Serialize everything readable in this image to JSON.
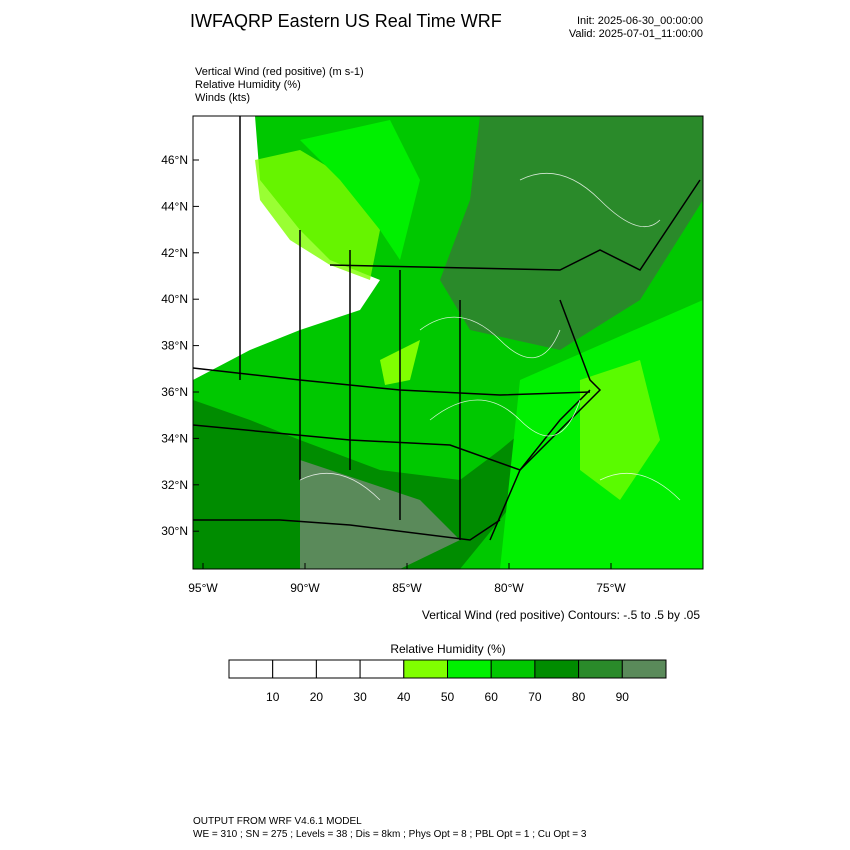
{
  "title": "IWFAQRP Eastern US Real Time WRF",
  "init": "Init: 2025-06-30_00:00:00",
  "valid": "Valid: 2025-07-01_11:00:00",
  "fields": [
    "Vertical Wind (red positive)   (m s-1)",
    "Relative Humidity   (%)",
    "Winds   (kts)"
  ],
  "lat_labels": [
    "46°N",
    "44°N",
    "42°N",
    "40°N",
    "38°N",
    "36°N",
    "34°N",
    "32°N",
    "30°N"
  ],
  "lon_labels": [
    "95°W",
    "90°W",
    "85°W",
    "80°W",
    "75°W"
  ],
  "contour_note": "Vertical Wind (red positive) Contours: -.5 to .5 by .05",
  "colorbar": {
    "title": "Relative Humidity  (%)",
    "ticks": [
      10,
      20,
      30,
      40,
      50,
      60,
      70,
      80,
      90
    ],
    "colors": [
      "#ffffff",
      "#ffffff",
      "#ffffff",
      "#ffffff",
      "#80ff00",
      "#00f000",
      "#00c800",
      "#008c00",
      "#2a8a2a",
      "#5a8a5a"
    ]
  },
  "footer": [
    "OUTPUT FROM WRF V4.6.1 MODEL",
    "WE = 310 ; SN = 275 ; Levels = 38 ; Dis = 8km ; Phys Opt = 8 ; PBL Opt = 1 ; Cu Opt = 3"
  ]
}
